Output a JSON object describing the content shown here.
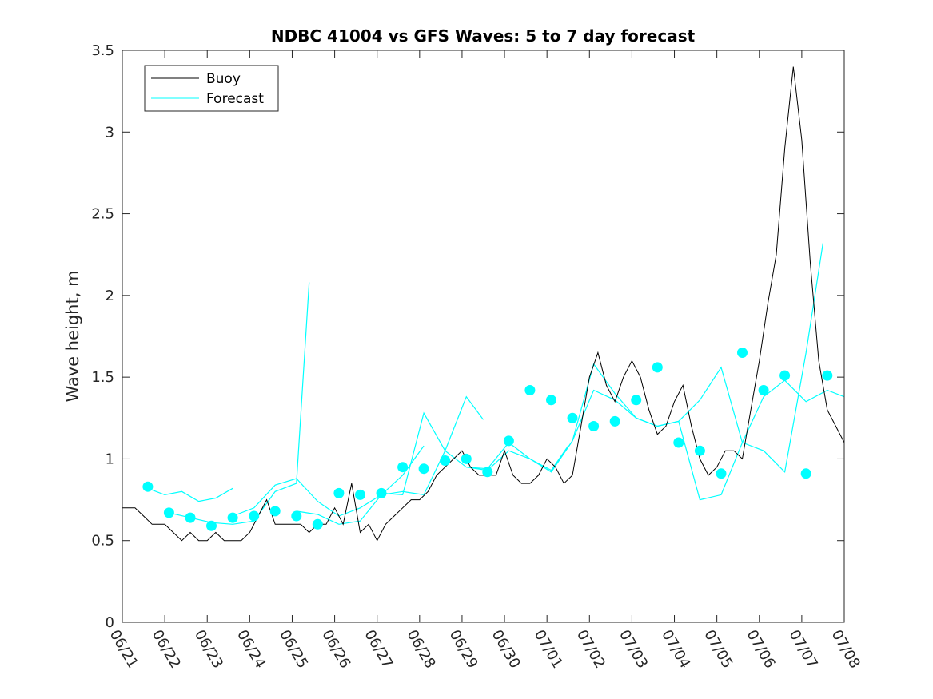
{
  "chart_data": {
    "type": "line",
    "title": "NDBC 41004 vs GFS Waves: 5 to 7 day forecast",
    "xlabel": "",
    "ylabel": "Wave height, m",
    "xlim": [
      "06/21",
      "07/08"
    ],
    "ylim": [
      0,
      3.5
    ],
    "yticks": [
      "0",
      "0.5",
      "1",
      "1.5",
      "2",
      "2.5",
      "3",
      "3.5"
    ],
    "xticks": [
      "06/21",
      "06/22",
      "06/23",
      "06/24",
      "06/25",
      "06/26",
      "06/27",
      "06/28",
      "06/29",
      "06/30",
      "07/01",
      "07/02",
      "07/03",
      "07/04",
      "07/05",
      "07/06",
      "07/07",
      "07/08"
    ],
    "grid": false,
    "legend_position": "top-left",
    "colors": {
      "buoy": "#000000",
      "forecast": "#00ffff",
      "axes": "#262626"
    },
    "series": [
      {
        "name": "Buoy",
        "style": "black-line",
        "x_days": [
          0,
          0.3,
          0.5,
          0.7,
          1,
          1.2,
          1.4,
          1.6,
          1.8,
          2,
          2.2,
          2.4,
          2.6,
          2.8,
          3,
          3.2,
          3.4,
          3.6,
          3.8,
          4,
          4.2,
          4.4,
          4.6,
          4.8,
          5,
          5.2,
          5.4,
          5.6,
          5.8,
          6,
          6.2,
          6.4,
          6.6,
          6.8,
          7,
          7.2,
          7.4,
          7.6,
          7.8,
          8,
          8.2,
          8.4,
          8.6,
          8.8,
          9,
          9.2,
          9.4,
          9.6,
          9.8,
          10,
          10.2,
          10.4,
          10.6,
          10.8,
          11,
          11.2,
          11.4,
          11.6,
          11.8,
          12,
          12.2,
          12.4,
          12.6,
          12.8,
          13,
          13.2,
          13.4,
          13.6,
          13.8,
          14,
          14.2,
          14.4,
          14.6,
          14.8,
          15,
          15.2,
          15.4,
          15.6,
          15.8,
          16,
          16.2,
          16.4,
          16.6,
          16.8,
          17
        ],
        "values": [
          0.7,
          0.7,
          0.65,
          0.6,
          0.6,
          0.55,
          0.5,
          0.55,
          0.5,
          0.5,
          0.55,
          0.5,
          0.5,
          0.5,
          0.55,
          0.65,
          0.75,
          0.6,
          0.6,
          0.6,
          0.6,
          0.55,
          0.6,
          0.6,
          0.7,
          0.6,
          0.85,
          0.55,
          0.6,
          0.5,
          0.6,
          0.65,
          0.7,
          0.75,
          0.75,
          0.8,
          0.9,
          0.95,
          1.0,
          1.05,
          0.95,
          0.9,
          0.9,
          0.9,
          1.05,
          0.9,
          0.85,
          0.85,
          0.9,
          1.0,
          0.95,
          0.85,
          0.9,
          1.2,
          1.5,
          1.65,
          1.45,
          1.35,
          1.5,
          1.6,
          1.5,
          1.3,
          1.15,
          1.2,
          1.35,
          1.45,
          1.2,
          1.0,
          0.9,
          0.95,
          1.05,
          1.05,
          1.0,
          1.3,
          1.6,
          1.95,
          2.25,
          2.9,
          3.4,
          2.95,
          2.2,
          1.6,
          1.3,
          1.2,
          1.1
        ]
      },
      {
        "name": "Forecast",
        "style": "cyan-lines",
        "traces": [
          {
            "x_days": [
              0.6,
              1.0,
              1.4,
              1.8,
              2.2,
              2.6
            ],
            "values": [
              0.82,
              0.78,
              0.8,
              0.74,
              0.76,
              0.82
            ]
          },
          {
            "x_days": [
              1.1,
              1.6,
              2.1,
              2.6,
              3.1,
              3.6,
              4.1,
              4.4
            ],
            "values": [
              0.67,
              0.64,
              0.61,
              0.6,
              0.62,
              0.8,
              0.85,
              2.08
            ]
          },
          {
            "x_days": [
              2.6,
              3.1,
              3.6,
              4.1,
              4.6,
              5.1,
              5.6,
              6.1,
              6.6,
              7.1
            ],
            "values": [
              0.65,
              0.7,
              0.84,
              0.88,
              0.74,
              0.65,
              0.7,
              0.78,
              0.9,
              1.08
            ]
          },
          {
            "x_days": [
              4.1,
              4.6,
              5.1,
              5.6,
              6.1,
              6.6,
              7.1,
              7.6,
              8.1,
              8.5
            ],
            "values": [
              0.68,
              0.66,
              0.6,
              0.62,
              0.78,
              0.8,
              0.78,
              1.05,
              1.38,
              1.24
            ]
          },
          {
            "x_days": [
              6.1,
              6.6,
              7.1,
              7.6,
              8.1,
              8.6,
              9.1,
              9.6,
              10.1,
              10.5
            ],
            "values": [
              0.79,
              0.78,
              1.28,
              1.05,
              0.95,
              0.93,
              1.05,
              1.0,
              0.93,
              1.08
            ]
          },
          {
            "x_days": [
              8.1,
              8.6,
              9.1,
              9.6,
              10.1,
              10.6,
              11.1,
              11.6,
              12.1,
              12.6
            ],
            "values": [
              0.95,
              0.94,
              1.1,
              1.0,
              0.92,
              1.11,
              1.42,
              1.36,
              1.25,
              1.2
            ]
          },
          {
            "x_days": [
              10.1,
              10.6,
              11.1,
              11.6,
              12.1,
              12.6,
              13.1,
              13.6,
              14.1,
              14.6
            ],
            "values": [
              0.92,
              1.11,
              1.58,
              1.4,
              1.25,
              1.2,
              1.23,
              1.36,
              1.56,
              1.1
            ]
          },
          {
            "x_days": [
              12.1,
              12.6,
              13.1,
              13.6,
              14.1,
              14.6,
              15.1,
              15.6,
              16.1,
              16.5
            ],
            "values": [
              1.25,
              1.2,
              1.23,
              0.75,
              0.78,
              1.1,
              1.05,
              0.92,
              1.65,
              2.32
            ]
          },
          {
            "x_days": [
              14.6,
              15.1,
              15.6,
              16.1,
              16.6,
              17.0
            ],
            "values": [
              1.1,
              1.38,
              1.48,
              1.35,
              1.42,
              1.38
            ]
          }
        ],
        "markers": {
          "x_days": [
            0.6,
            1.1,
            1.6,
            2.1,
            2.6,
            3.1,
            3.6,
            4.1,
            4.6,
            5.1,
            5.6,
            6.1,
            6.6,
            7.1,
            7.6,
            8.1,
            8.6,
            9.1,
            9.6,
            10.1,
            10.6,
            11.1,
            11.6,
            12.1,
            12.6,
            13.1,
            13.6,
            14.1,
            14.6,
            15.1,
            15.6,
            16.1,
            16.6
          ],
          "values": [
            0.83,
            0.67,
            0.64,
            0.59,
            0.64,
            0.65,
            0.68,
            0.65,
            0.6,
            0.79,
            0.78,
            0.79,
            0.95,
            0.94,
            0.99,
            1.0,
            0.92,
            1.11,
            1.42,
            1.36,
            1.25,
            1.2,
            1.23,
            1.36,
            1.56,
            1.1,
            1.05,
            0.91,
            1.65,
            1.42,
            1.51,
            0.91,
            1.51
          ]
        }
      }
    ]
  }
}
